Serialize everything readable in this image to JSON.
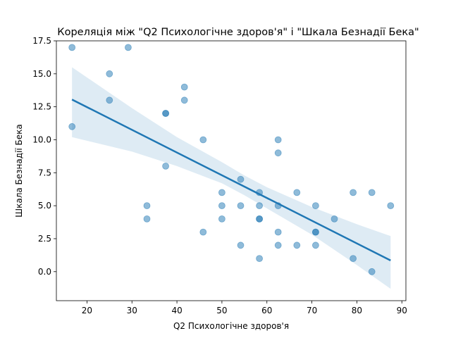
{
  "chart_data": {
    "type": "scatter",
    "title": "Кореляція між \"Q2 Психологічне здоров'я\" і \"Шкала Безнадії Бека\"",
    "xlabel": "Q2 Психологічне здоров'я",
    "ylabel": "Шкала Безнадії Бека",
    "xlim": [
      13.2,
      90.9
    ],
    "ylim": [
      -2.2,
      17.5
    ],
    "x_ticks": [
      20,
      30,
      40,
      50,
      60,
      70,
      80,
      90
    ],
    "y_ticks": [
      0.0,
      2.5,
      5.0,
      7.5,
      10.0,
      12.5,
      15.0,
      17.5
    ],
    "y_tick_labels": [
      "0.0",
      "2.5",
      "5.0",
      "7.5",
      "10.0",
      "12.5",
      "15.0",
      "17.5"
    ],
    "grid": false,
    "legend": "none",
    "colors": {
      "points": "#1f77b4",
      "line": "#1f77b4",
      "band": "#1f77b4"
    },
    "points": [
      {
        "x": 16.67,
        "y": 17
      },
      {
        "x": 29.17,
        "y": 17
      },
      {
        "x": 16.67,
        "y": 11
      },
      {
        "x": 25.0,
        "y": 15
      },
      {
        "x": 25.0,
        "y": 13
      },
      {
        "x": 37.5,
        "y": 12
      },
      {
        "x": 37.5,
        "y": 12
      },
      {
        "x": 37.5,
        "y": 8
      },
      {
        "x": 41.67,
        "y": 14
      },
      {
        "x": 41.67,
        "y": 13
      },
      {
        "x": 33.33,
        "y": 5
      },
      {
        "x": 33.33,
        "y": 4
      },
      {
        "x": 45.83,
        "y": 10
      },
      {
        "x": 45.83,
        "y": 3
      },
      {
        "x": 50.0,
        "y": 6
      },
      {
        "x": 50.0,
        "y": 5
      },
      {
        "x": 50.0,
        "y": 4
      },
      {
        "x": 54.17,
        "y": 7
      },
      {
        "x": 54.17,
        "y": 5
      },
      {
        "x": 54.17,
        "y": 2
      },
      {
        "x": 58.33,
        "y": 6
      },
      {
        "x": 58.33,
        "y": 5
      },
      {
        "x": 58.33,
        "y": 4
      },
      {
        "x": 58.33,
        "y": 4
      },
      {
        "x": 58.33,
        "y": 1
      },
      {
        "x": 62.5,
        "y": 10
      },
      {
        "x": 62.5,
        "y": 9
      },
      {
        "x": 62.5,
        "y": 5
      },
      {
        "x": 62.5,
        "y": 3
      },
      {
        "x": 62.5,
        "y": 2
      },
      {
        "x": 66.67,
        "y": 6
      },
      {
        "x": 66.67,
        "y": 2
      },
      {
        "x": 70.83,
        "y": 5
      },
      {
        "x": 70.83,
        "y": 3
      },
      {
        "x": 70.83,
        "y": 3
      },
      {
        "x": 70.83,
        "y": 2
      },
      {
        "x": 75.0,
        "y": 4
      },
      {
        "x": 79.17,
        "y": 6
      },
      {
        "x": 79.17,
        "y": 1
      },
      {
        "x": 83.33,
        "y": 6
      },
      {
        "x": 83.33,
        "y": 0
      },
      {
        "x": 87.5,
        "y": 5
      }
    ],
    "regression": {
      "x": [
        16.67,
        87.5
      ],
      "y": [
        13.05,
        0.85
      ]
    },
    "confidence_band": {
      "x": [
        16.67,
        30,
        40,
        50,
        55,
        60,
        70,
        80,
        87.5
      ],
      "upper": [
        15.5,
        12.4,
        10.2,
        8.3,
        7.3,
        6.4,
        4.9,
        3.6,
        2.7
      ],
      "lower": [
        10.2,
        9.1,
        8.0,
        6.7,
        5.8,
        4.8,
        2.8,
        0.5,
        -1.3
      ]
    }
  }
}
